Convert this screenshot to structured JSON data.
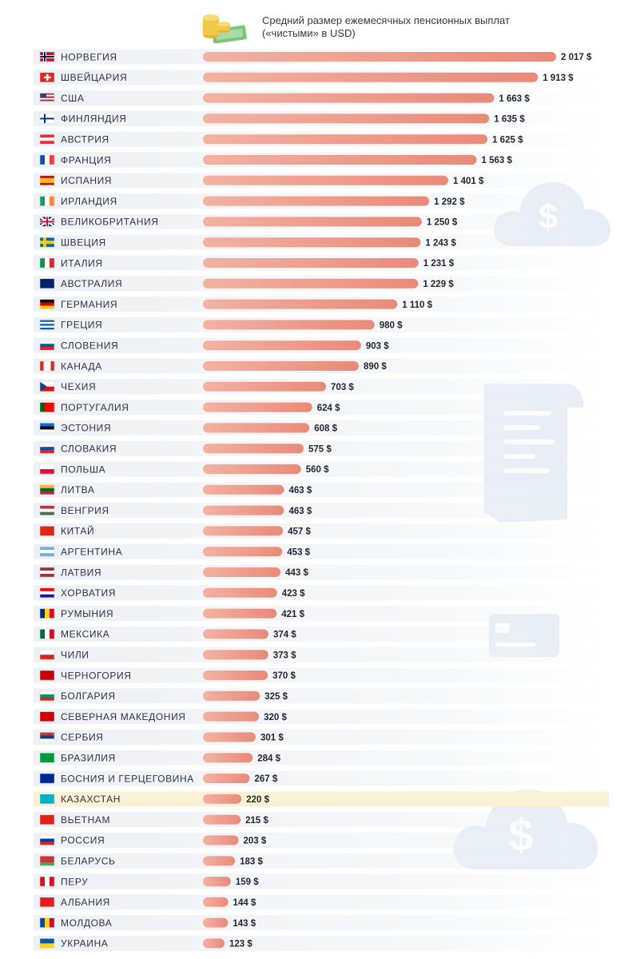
{
  "header": {
    "title_line1": "Средний размер ежемесячных пенсионных выплат",
    "title_line2": "(«чистыми» в USD)",
    "icon": "coins-and-cash-icon"
  },
  "decor_icons": [
    "cloud-dollar-icon",
    "receipt-icon",
    "credit-card-icon",
    "cloud-dollar-icon"
  ],
  "colors": {
    "bar": "#ea8a79",
    "bar_start": "#f2b2a2",
    "row_band": "#eef1f5",
    "highlight_row": "#fbf1d4",
    "decor": "#e7edf6"
  },
  "chart_data": {
    "type": "bar",
    "orientation": "horizontal",
    "title": "Средний размер ежемесячных пенсионных выплат («чистыми» в USD)",
    "highlight": "КАЗАХСТАН",
    "unit": "$",
    "rows": [
      {
        "country": "НОРВЕГИЯ",
        "value": 2017,
        "label": "2 017 $",
        "flag": "norway-flag-icon"
      },
      {
        "country": "ШВЕЙЦАРИЯ",
        "value": 1913,
        "label": "1 913 $",
        "flag": "switzerland-flag-icon"
      },
      {
        "country": "США",
        "value": 1663,
        "label": "1 663 $",
        "flag": "usa-flag-icon"
      },
      {
        "country": "ФИНЛЯНДИЯ",
        "value": 1635,
        "label": "1 635 $",
        "flag": "finland-flag-icon"
      },
      {
        "country": "АВСТРИЯ",
        "value": 1625,
        "label": "1 625 $",
        "flag": "austria-flag-icon"
      },
      {
        "country": "ФРАНЦИЯ",
        "value": 1563,
        "label": "1 563 $",
        "flag": "france-flag-icon"
      },
      {
        "country": "ИСПАНИЯ",
        "value": 1401,
        "label": "1 401 $",
        "flag": "spain-flag-icon"
      },
      {
        "country": "ИРЛАНДИЯ",
        "value": 1292,
        "label": "1 292 $",
        "flag": "ireland-flag-icon"
      },
      {
        "country": "ВЕЛИКОБРИТАНИЯ",
        "value": 1250,
        "label": "1 250 $",
        "flag": "uk-flag-icon"
      },
      {
        "country": "ШВЕЦИЯ",
        "value": 1243,
        "label": "1 243 $",
        "flag": "sweden-flag-icon"
      },
      {
        "country": "ИТАЛИЯ",
        "value": 1231,
        "label": "1 231 $",
        "flag": "italy-flag-icon"
      },
      {
        "country": "АВСТРАЛИЯ",
        "value": 1229,
        "label": "1 229 $",
        "flag": "australia-flag-icon"
      },
      {
        "country": "ГЕРМАНИЯ",
        "value": 1110,
        "label": "1 110 $",
        "flag": "germany-flag-icon"
      },
      {
        "country": "ГРЕЦИЯ",
        "value": 980,
        "label": "980 $",
        "flag": "greece-flag-icon"
      },
      {
        "country": "СЛОВЕНИЯ",
        "value": 903,
        "label": "903 $",
        "flag": "slovenia-flag-icon"
      },
      {
        "country": "КАНАДА",
        "value": 890,
        "label": "890 $",
        "flag": "canada-flag-icon"
      },
      {
        "country": "ЧЕХИЯ",
        "value": 703,
        "label": "703 $",
        "flag": "czechia-flag-icon"
      },
      {
        "country": "ПОРТУГАЛИЯ",
        "value": 624,
        "label": "624 $",
        "flag": "portugal-flag-icon"
      },
      {
        "country": "ЭСТОНИЯ",
        "value": 608,
        "label": "608 $",
        "flag": "estonia-flag-icon"
      },
      {
        "country": "СЛОВАКИЯ",
        "value": 575,
        "label": "575 $",
        "flag": "slovakia-flag-icon"
      },
      {
        "country": "ПОЛЬША",
        "value": 560,
        "label": "560 $",
        "flag": "poland-flag-icon"
      },
      {
        "country": "ЛИТВА",
        "value": 463,
        "label": "463 $",
        "flag": "lithuania-flag-icon"
      },
      {
        "country": "ВЕНГРИЯ",
        "value": 463,
        "label": "463 $",
        "flag": "hungary-flag-icon"
      },
      {
        "country": "КИТАЙ",
        "value": 457,
        "label": "457 $",
        "flag": "china-flag-icon"
      },
      {
        "country": "АРГЕНТИНА",
        "value": 453,
        "label": "453 $",
        "flag": "argentina-flag-icon"
      },
      {
        "country": "ЛАТВИЯ",
        "value": 443,
        "label": "443 $",
        "flag": "latvia-flag-icon"
      },
      {
        "country": "ХОРВАТИЯ",
        "value": 423,
        "label": "423 $",
        "flag": "croatia-flag-icon"
      },
      {
        "country": "РУМЫНИЯ",
        "value": 421,
        "label": "421 $",
        "flag": "romania-flag-icon"
      },
      {
        "country": "МЕКСИКА",
        "value": 374,
        "label": "374 $",
        "flag": "mexico-flag-icon"
      },
      {
        "country": "ЧИЛИ",
        "value": 373,
        "label": "373 $",
        "flag": "chile-flag-icon"
      },
      {
        "country": "ЧЕРНОГОРИЯ",
        "value": 370,
        "label": "370 $",
        "flag": "montenegro-flag-icon"
      },
      {
        "country": "БОЛГАРИЯ",
        "value": 325,
        "label": "325 $",
        "flag": "bulgaria-flag-icon"
      },
      {
        "country": "СЕВЕРНАЯ МАКЕДОНИЯ",
        "value": 320,
        "label": "320 $",
        "flag": "north-macedonia-flag-icon"
      },
      {
        "country": "СЕРБИЯ",
        "value": 301,
        "label": "301 $",
        "flag": "serbia-flag-icon"
      },
      {
        "country": "БРАЗИЛИЯ",
        "value": 284,
        "label": "284 $",
        "flag": "brazil-flag-icon"
      },
      {
        "country": "БОСНИЯ И ГЕРЦЕГОВИНА",
        "value": 267,
        "label": "267 $",
        "flag": "bosnia-flag-icon"
      },
      {
        "country": "КАЗАХСТАН",
        "value": 220,
        "label": "220 $",
        "flag": "kazakhstan-flag-icon"
      },
      {
        "country": "ВЬЕТНАМ",
        "value": 215,
        "label": "215 $",
        "flag": "vietnam-flag-icon"
      },
      {
        "country": "РОССИЯ",
        "value": 203,
        "label": "203 $",
        "flag": "russia-flag-icon"
      },
      {
        "country": "БЕЛАРУСЬ",
        "value": 183,
        "label": "183 $",
        "flag": "belarus-flag-icon"
      },
      {
        "country": "ПЕРУ",
        "value": 159,
        "label": "159 $",
        "flag": "peru-flag-icon"
      },
      {
        "country": "АЛБАНИЯ",
        "value": 144,
        "label": "144 $",
        "flag": "albania-flag-icon"
      },
      {
        "country": "МОЛДОВА",
        "value": 143,
        "label": "143 $",
        "flag": "moldova-flag-icon"
      },
      {
        "country": "УКРАИНА",
        "value": 123,
        "label": "123 $",
        "flag": "ukraine-flag-icon"
      }
    ]
  }
}
